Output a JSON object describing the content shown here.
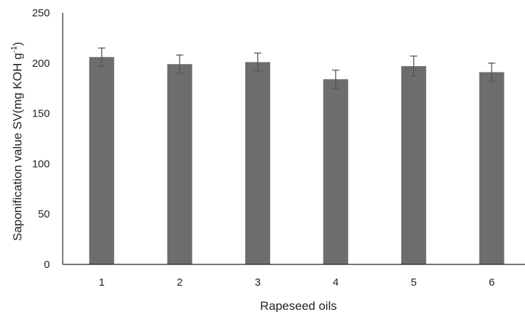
{
  "chart_data": {
    "type": "bar",
    "categories": [
      "1",
      "2",
      "3",
      "4",
      "5",
      "6"
    ],
    "values": [
      206,
      199,
      201,
      184,
      197,
      191
    ],
    "error": [
      9,
      9,
      9,
      9,
      10,
      9
    ],
    "xlabel": "Rapeseed oils",
    "ylabel_main": "Saponification value SV(mg KOH g",
    "ylabel_sup": "-1",
    "ylabel_close": ")",
    "ylim": [
      0,
      250
    ],
    "yticks": [
      0,
      50,
      100,
      150,
      200,
      250
    ],
    "grid": false,
    "legend": "none",
    "bar_color": "#6d6d6d",
    "error_bar_color": "#555555",
    "axis_color": "#222222"
  }
}
